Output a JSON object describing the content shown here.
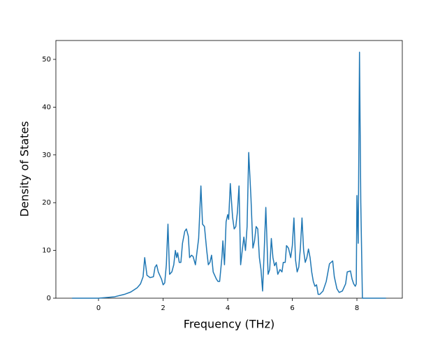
{
  "chart_data": {
    "type": "line",
    "xlabel": "Frequency (THz)",
    "ylabel": "Density of States",
    "xlim": [
      -1.32,
      9.405
    ],
    "ylim": [
      0,
      53.95
    ],
    "xticks": [
      0,
      2,
      4,
      6,
      8
    ],
    "yticks": [
      0,
      10,
      20,
      30,
      40,
      50
    ],
    "series": [
      {
        "color": "#1f77b4",
        "x": [
          -0.82,
          0,
          0.5,
          0.8,
          1.0,
          1.2,
          1.3,
          1.38,
          1.43,
          1.5,
          1.6,
          1.7,
          1.75,
          1.8,
          1.85,
          1.95,
          2.0,
          2.05,
          2.1,
          2.15,
          2.2,
          2.27,
          2.33,
          2.38,
          2.42,
          2.45,
          2.5,
          2.55,
          2.6,
          2.67,
          2.72,
          2.78,
          2.82,
          2.88,
          2.93,
          3.0,
          3.1,
          3.17,
          3.22,
          3.28,
          3.35,
          3.4,
          3.45,
          3.5,
          3.55,
          3.65,
          3.7,
          3.75,
          3.82,
          3.85,
          3.9,
          3.95,
          4.0,
          4.03,
          4.08,
          4.15,
          4.2,
          4.25,
          4.3,
          4.35,
          4.4,
          4.45,
          4.5,
          4.55,
          4.6,
          4.65,
          4.72,
          4.78,
          4.83,
          4.88,
          4.93,
          4.98,
          5.03,
          5.08,
          5.13,
          5.18,
          5.25,
          5.3,
          5.35,
          5.4,
          5.45,
          5.5,
          5.55,
          5.62,
          5.68,
          5.72,
          5.78,
          5.82,
          5.88,
          5.95,
          6.0,
          6.05,
          6.1,
          6.15,
          6.2,
          6.25,
          6.3,
          6.35,
          6.4,
          6.45,
          6.5,
          6.55,
          6.6,
          6.65,
          6.7,
          6.75,
          6.8,
          6.85,
          6.95,
          7.05,
          7.15,
          7.25,
          7.3,
          7.38,
          7.45,
          7.55,
          7.65,
          7.7,
          7.8,
          7.85,
          7.9,
          7.95,
          7.98,
          8.0,
          8.04,
          8.08,
          8.12,
          8.17,
          8.9
        ],
        "values": [
          0,
          0,
          0.3,
          0.8,
          1.3,
          2.2,
          3.0,
          4.5,
          8.5,
          4.8,
          4.3,
          4.5,
          6.5,
          7.0,
          5.5,
          4.0,
          2.8,
          3.2,
          7,
          15.5,
          5,
          5.5,
          7,
          10,
          8.5,
          9.5,
          7.5,
          7.5,
          11.5,
          14,
          14.5,
          13,
          8.5,
          9,
          8.7,
          7,
          12.5,
          23.5,
          15.5,
          15,
          10,
          7,
          7.5,
          9,
          5.5,
          4,
          3.5,
          3.5,
          8.5,
          12,
          7,
          16,
          17.5,
          16.5,
          24,
          17,
          14.5,
          15,
          18,
          23.5,
          7,
          10,
          12.8,
          10,
          15,
          30.5,
          21,
          10.5,
          12,
          15,
          14.5,
          8.5,
          6,
          1.5,
          10,
          19,
          5,
          6,
          12.5,
          8.5,
          6.8,
          7.5,
          5,
          6,
          5.5,
          7.5,
          7.5,
          11,
          10.5,
          8.5,
          11,
          16.8,
          8,
          5.5,
          6.5,
          10.5,
          16.8,
          10,
          7.5,
          8.5,
          10.3,
          8.5,
          5.5,
          3.5,
          2.5,
          2.8,
          0.8,
          0.8,
          1.5,
          3.5,
          7.2,
          7.8,
          4.5,
          2,
          1.2,
          1.5,
          3,
          5.5,
          5.7,
          4,
          3,
          2.5,
          3,
          21.5,
          11.5,
          51.5,
          20,
          0,
          0
        ]
      }
    ]
  }
}
